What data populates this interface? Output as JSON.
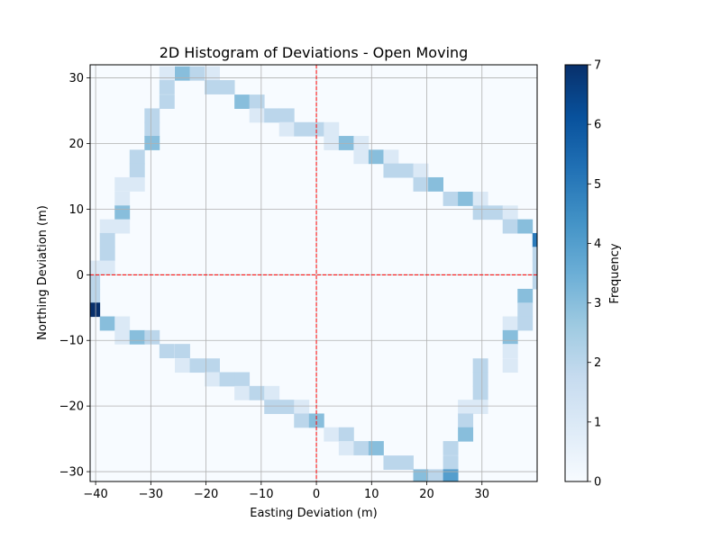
{
  "chart_data": {
    "type": "heatmap",
    "title": "2D Histogram of Deviations - Open Moving",
    "xlabel": "Easting Deviation (m)",
    "ylabel": "Northing Deviation (m)",
    "xlim": [
      -41,
      40
    ],
    "ylim": [
      -31.5,
      32
    ],
    "x_ticks": [
      -40,
      -30,
      -20,
      -10,
      0,
      10,
      20,
      30
    ],
    "y_ticks": [
      -30,
      -20,
      -10,
      0,
      10,
      20,
      30
    ],
    "x_tick_labels": [
      "−40",
      "−30",
      "−20",
      "−10",
      "0",
      "10",
      "20",
      "30"
    ],
    "y_tick_labels": [
      "−30",
      "−20",
      "−10",
      "0",
      "10",
      "20",
      "30"
    ],
    "grid": true,
    "reference_lines": {
      "x": 0,
      "y": 0,
      "color": "#ff0000",
      "style": "dashed"
    },
    "bin_width_x": 2.7,
    "bin_height_y": 2.12,
    "colorbar": {
      "label": "Frequency",
      "range": [
        0,
        7
      ],
      "ticks": [
        0,
        1,
        2,
        3,
        4,
        5,
        6,
        7
      ],
      "colormap": "Blues",
      "stops": [
        "#f7fbff",
        "#deebf7",
        "#c6dbef",
        "#9ecae1",
        "#6baed6",
        "#4292c6",
        "#2171b5",
        "#08519c",
        "#08306b"
      ]
    },
    "cells": [
      {
        "x": -27.1,
        "y": 30.7,
        "count": 1
      },
      {
        "x": -24.3,
        "y": 30.7,
        "count": 3
      },
      {
        "x": -21.6,
        "y": 30.7,
        "count": 2
      },
      {
        "x": -18.9,
        "y": 30.7,
        "count": 1
      },
      {
        "x": -27.1,
        "y": 28.6,
        "count": 2
      },
      {
        "x": -18.9,
        "y": 28.6,
        "count": 2
      },
      {
        "x": -16.2,
        "y": 28.6,
        "count": 2
      },
      {
        "x": -27.1,
        "y": 26.4,
        "count": 2
      },
      {
        "x": -13.5,
        "y": 26.4,
        "count": 3
      },
      {
        "x": -10.8,
        "y": 26.4,
        "count": 2
      },
      {
        "x": -29.8,
        "y": 24.3,
        "count": 2
      },
      {
        "x": -10.8,
        "y": 24.3,
        "count": 1
      },
      {
        "x": -8.1,
        "y": 24.3,
        "count": 2
      },
      {
        "x": -5.4,
        "y": 24.3,
        "count": 2
      },
      {
        "x": -29.8,
        "y": 22.2,
        "count": 2
      },
      {
        "x": -5.4,
        "y": 22.2,
        "count": 1
      },
      {
        "x": -2.7,
        "y": 22.2,
        "count": 2
      },
      {
        "x": 0,
        "y": 22.2,
        "count": 2
      },
      {
        "x": 2.7,
        "y": 22.2,
        "count": 1
      },
      {
        "x": -29.8,
        "y": 20.1,
        "count": 3
      },
      {
        "x": 2.7,
        "y": 20.1,
        "count": 1
      },
      {
        "x": 5.4,
        "y": 20.1,
        "count": 3
      },
      {
        "x": 8.1,
        "y": 20.1,
        "count": 1
      },
      {
        "x": -32.5,
        "y": 18.0,
        "count": 2
      },
      {
        "x": 8.1,
        "y": 18.0,
        "count": 1
      },
      {
        "x": 10.8,
        "y": 18.0,
        "count": 3
      },
      {
        "x": 13.5,
        "y": 18.0,
        "count": 1
      },
      {
        "x": -32.5,
        "y": 15.9,
        "count": 2
      },
      {
        "x": 13.5,
        "y": 15.9,
        "count": 2
      },
      {
        "x": 16.2,
        "y": 15.9,
        "count": 2
      },
      {
        "x": 18.9,
        "y": 15.9,
        "count": 1
      },
      {
        "x": -35.2,
        "y": 13.8,
        "count": 1
      },
      {
        "x": -32.5,
        "y": 13.8,
        "count": 1
      },
      {
        "x": 18.9,
        "y": 13.8,
        "count": 2
      },
      {
        "x": 21.6,
        "y": 13.8,
        "count": 3
      },
      {
        "x": -35.2,
        "y": 11.6,
        "count": 1
      },
      {
        "x": 24.3,
        "y": 11.6,
        "count": 2
      },
      {
        "x": 27.0,
        "y": 11.6,
        "count": 3
      },
      {
        "x": 29.7,
        "y": 11.6,
        "count": 1
      },
      {
        "x": -35.2,
        "y": 9.5,
        "count": 3
      },
      {
        "x": 29.7,
        "y": 9.5,
        "count": 2
      },
      {
        "x": 32.4,
        "y": 9.5,
        "count": 2
      },
      {
        "x": 35.1,
        "y": 9.5,
        "count": 1
      },
      {
        "x": -37.9,
        "y": 7.4,
        "count": 1
      },
      {
        "x": -35.2,
        "y": 7.4,
        "count": 1
      },
      {
        "x": 35.1,
        "y": 7.4,
        "count": 2
      },
      {
        "x": 37.8,
        "y": 7.4,
        "count": 3
      },
      {
        "x": -37.9,
        "y": 5.3,
        "count": 2
      },
      {
        "x": 40.5,
        "y": 5.3,
        "count": 5
      },
      {
        "x": -37.9,
        "y": 3.2,
        "count": 2
      },
      {
        "x": 40.5,
        "y": 3.2,
        "count": 2
      },
      {
        "x": -40.6,
        "y": 1.1,
        "count": 1
      },
      {
        "x": -37.9,
        "y": 1.1,
        "count": 1
      },
      {
        "x": 40.5,
        "y": 1.1,
        "count": 2
      },
      {
        "x": -40.6,
        "y": -1.1,
        "count": 2
      },
      {
        "x": 40.5,
        "y": -1.1,
        "count": 2
      },
      {
        "x": -40.6,
        "y": -3.2,
        "count": 2
      },
      {
        "x": 37.8,
        "y": -3.2,
        "count": 3
      },
      {
        "x": -40.6,
        "y": -5.3,
        "count": 7
      },
      {
        "x": 37.8,
        "y": -5.3,
        "count": 2
      },
      {
        "x": -37.9,
        "y": -7.4,
        "count": 3
      },
      {
        "x": -35.2,
        "y": -7.4,
        "count": 1
      },
      {
        "x": 35.1,
        "y": -7.4,
        "count": 1
      },
      {
        "x": 37.8,
        "y": -7.4,
        "count": 2
      },
      {
        "x": -35.2,
        "y": -9.5,
        "count": 1
      },
      {
        "x": -32.5,
        "y": -9.5,
        "count": 3
      },
      {
        "x": -29.8,
        "y": -9.5,
        "count": 2
      },
      {
        "x": 35.1,
        "y": -9.5,
        "count": 3
      },
      {
        "x": -27.1,
        "y": -11.6,
        "count": 2
      },
      {
        "x": -24.3,
        "y": -11.6,
        "count": 2
      },
      {
        "x": 35.1,
        "y": -11.6,
        "count": 1
      },
      {
        "x": -24.3,
        "y": -13.8,
        "count": 1
      },
      {
        "x": -21.6,
        "y": -13.8,
        "count": 2
      },
      {
        "x": -18.9,
        "y": -13.8,
        "count": 2
      },
      {
        "x": 29.7,
        "y": -13.8,
        "count": 2
      },
      {
        "x": 35.1,
        "y": -13.8,
        "count": 1
      },
      {
        "x": -18.9,
        "y": -15.9,
        "count": 1
      },
      {
        "x": -16.2,
        "y": -15.9,
        "count": 2
      },
      {
        "x": -13.5,
        "y": -15.9,
        "count": 2
      },
      {
        "x": 29.7,
        "y": -15.9,
        "count": 2
      },
      {
        "x": -13.5,
        "y": -18.0,
        "count": 1
      },
      {
        "x": -10.8,
        "y": -18.0,
        "count": 2
      },
      {
        "x": -8.1,
        "y": -18.0,
        "count": 1
      },
      {
        "x": 29.7,
        "y": -18.0,
        "count": 2
      },
      {
        "x": -8.1,
        "y": -20.1,
        "count": 2
      },
      {
        "x": -5.4,
        "y": -20.1,
        "count": 2
      },
      {
        "x": -2.7,
        "y": -20.1,
        "count": 1
      },
      {
        "x": 27.0,
        "y": -20.1,
        "count": 1
      },
      {
        "x": 29.7,
        "y": -20.1,
        "count": 1
      },
      {
        "x": -2.7,
        "y": -22.2,
        "count": 2
      },
      {
        "x": 0,
        "y": -22.2,
        "count": 3
      },
      {
        "x": 27.0,
        "y": -22.2,
        "count": 2
      },
      {
        "x": 2.7,
        "y": -24.3,
        "count": 1
      },
      {
        "x": 5.4,
        "y": -24.3,
        "count": 2
      },
      {
        "x": 27.0,
        "y": -24.3,
        "count": 3
      },
      {
        "x": 5.4,
        "y": -26.4,
        "count": 1
      },
      {
        "x": 8.1,
        "y": -26.4,
        "count": 2
      },
      {
        "x": 10.8,
        "y": -26.4,
        "count": 3
      },
      {
        "x": 24.3,
        "y": -26.4,
        "count": 2
      },
      {
        "x": 13.5,
        "y": -28.6,
        "count": 2
      },
      {
        "x": 16.2,
        "y": -28.6,
        "count": 2
      },
      {
        "x": 24.3,
        "y": -28.6,
        "count": 2
      },
      {
        "x": 18.9,
        "y": -30.7,
        "count": 3
      },
      {
        "x": 21.6,
        "y": -30.7,
        "count": 2
      },
      {
        "x": 24.3,
        "y": -30.7,
        "count": 4
      }
    ]
  }
}
